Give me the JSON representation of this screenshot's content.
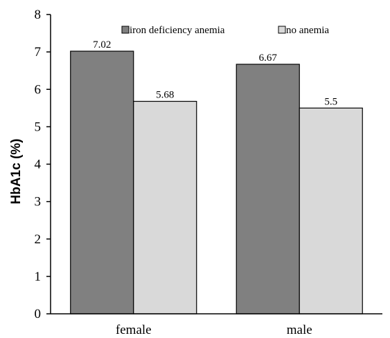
{
  "chart_data": {
    "type": "bar",
    "categories": [
      "female",
      "male"
    ],
    "series": [
      {
        "name": "iron deficiency anemia",
        "values": [
          7.02,
          6.67
        ],
        "color": "#808080"
      },
      {
        "name": "no anemia",
        "values": [
          5.68,
          5.5
        ],
        "color": "#d9d9d9"
      }
    ],
    "data_labels": [
      [
        "7.02",
        "6.67"
      ],
      [
        "5.68",
        "5.5"
      ]
    ],
    "title": "",
    "xlabel": "",
    "ylabel": "HbA1c (%)",
    "ylim": [
      0,
      8
    ],
    "yticks": [
      "0",
      "1",
      "2",
      "3",
      "4",
      "5",
      "6",
      "7",
      "8"
    ],
    "grid": false,
    "legend_position": "top"
  }
}
